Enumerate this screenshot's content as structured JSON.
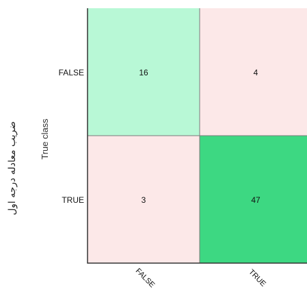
{
  "side_label": "ضریب معادله درجه اول",
  "chart_data": {
    "type": "heatmap",
    "title": "",
    "xlabel": "",
    "ylabel": "True class",
    "x_categories": [
      "FALSE",
      "TRUE"
    ],
    "y_categories": [
      "FALSE",
      "TRUE"
    ],
    "values": [
      [
        16,
        4
      ],
      [
        3,
        47
      ]
    ],
    "cell_colors": [
      [
        "#b8f8d6",
        "#fce8e8"
      ],
      [
        "#fce8e8",
        "#3dd882"
      ]
    ],
    "grid_color": "#7a7a7a",
    "border_color": "#333333"
  }
}
